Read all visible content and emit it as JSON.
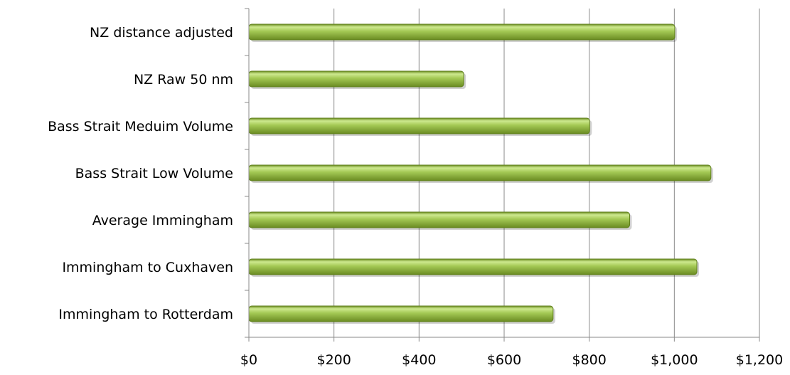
{
  "chart_data": {
    "type": "bar",
    "orientation": "horizontal",
    "title": "",
    "xlabel": "",
    "ylabel": "",
    "categories": [
      "Immingham to Rotterdam",
      "Immingham to Cuxhaven",
      "Average Immingham",
      "Bass Strait Low Volume",
      "Bass Strait Meduim Volume",
      "NZ Raw 50 nm",
      "NZ distance adjusted"
    ],
    "values": [
      715,
      1053,
      895,
      1086,
      801,
      505,
      1001
    ],
    "xlim": [
      0,
      1200
    ],
    "xticks": [
      0,
      200,
      400,
      600,
      800,
      1000,
      1200
    ],
    "xtick_labels": [
      "$0",
      "$200",
      "$400",
      "$600",
      "$800",
      "$1,000",
      "$1,200"
    ],
    "grid": "vertical",
    "legend": "none",
    "bar_color": "#8fb73a",
    "bar_light": "#d2ec95",
    "bar_dark": "#5f7f1c"
  }
}
